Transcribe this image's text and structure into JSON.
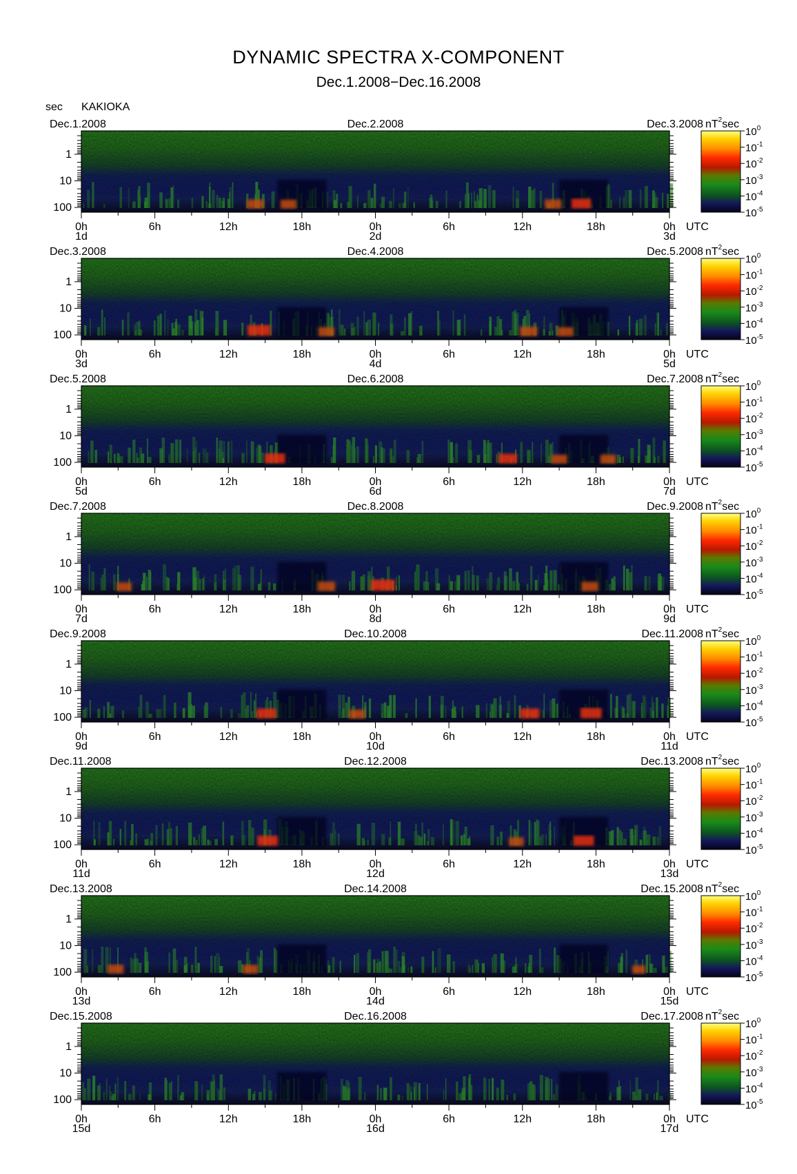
{
  "chart_data": {
    "type": "heatmap",
    "title": "DYNAMIC SPECTRA X-COMPONENT",
    "subtitle": "Dec.1.2008−Dec.16.2008",
    "y_unit": "sec",
    "station": "KAKIOKA",
    "colorbar_unit": "nT",
    "colorbar_unit_suffix": "sec",
    "colorbar_unit_exp": "2",
    "colorbar_ticks": [
      {
        "base": "10",
        "exp": "0"
      },
      {
        "base": "10",
        "exp": "-1"
      },
      {
        "base": "10",
        "exp": "-2"
      },
      {
        "base": "10",
        "exp": "-3"
      },
      {
        "base": "10",
        "exp": "-4"
      },
      {
        "base": "10",
        "exp": "-5"
      }
    ],
    "colorbar_colors": [
      "#ffff80",
      "#ffd000",
      "#ff8c00",
      "#ff2a00",
      "#b81800",
      "#5a7a00",
      "#1a8a1a",
      "#0d5a1e",
      "#14145a",
      "#050514"
    ],
    "y_tick_labels": [
      "1",
      "10",
      "100"
    ],
    "y_tick_values": [
      1,
      10,
      100
    ],
    "x_tick_labels": [
      "0h",
      "6h",
      "12h",
      "18h",
      "0h",
      "6h",
      "12h",
      "18h",
      "0h"
    ],
    "time_unit": "UTC",
    "panels": [
      {
        "date_left": "Dec.1.2008",
        "date_mid": "Dec.2.2008",
        "date_right": "Dec.3.2008",
        "day_labels": [
          "1d",
          "2d",
          "3d"
        ],
        "events": [
          [
            14.2,
            0.55
          ],
          [
            16.9,
            0.5
          ],
          [
            38.5,
            0.55
          ],
          [
            40.8,
            0.7
          ]
        ]
      },
      {
        "date_left": "Dec.3.2008",
        "date_mid": "Dec.4.2008",
        "date_right": "Dec.5.2008",
        "day_labels": [
          "3d",
          "4d",
          "5d"
        ],
        "events": [
          [
            14.5,
            0.9
          ],
          [
            20.0,
            0.5
          ],
          [
            36.5,
            0.6
          ],
          [
            39.5,
            0.5
          ]
        ]
      },
      {
        "date_left": "Dec.5.2008",
        "date_mid": "Dec.6.2008",
        "date_right": "Dec.7.2008",
        "day_labels": [
          "5d",
          "6d",
          "7d"
        ],
        "events": [
          [
            15.8,
            0.75
          ],
          [
            34.8,
            0.65
          ],
          [
            39.0,
            0.5
          ],
          [
            43.0,
            0.5
          ]
        ]
      },
      {
        "date_left": "Dec.7.2008",
        "date_mid": "Dec.8.2008",
        "date_right": "Dec.9.2008",
        "day_labels": [
          "7d",
          "8d",
          "9d"
        ],
        "events": [
          [
            3.5,
            0.45
          ],
          [
            20.0,
            0.6
          ],
          [
            24.6,
            0.95
          ],
          [
            41.5,
            0.55
          ]
        ]
      },
      {
        "date_left": "Dec.9.2008",
        "date_mid": "Dec.10.2008",
        "date_right": "Dec.11.2008",
        "day_labels": [
          "9d",
          "10d",
          "11d"
        ],
        "events": [
          [
            15.1,
            0.7
          ],
          [
            22.5,
            0.5
          ],
          [
            36.6,
            0.7
          ],
          [
            41.6,
            0.8
          ]
        ]
      },
      {
        "date_left": "Dec.11.2008",
        "date_mid": "Dec.12.2008",
        "date_right": "Dec.13.2008",
        "day_labels": [
          "11d",
          "12d",
          "13d"
        ],
        "events": [
          [
            15.2,
            0.75
          ],
          [
            35.5,
            0.45
          ],
          [
            41.0,
            0.75
          ]
        ]
      },
      {
        "date_left": "Dec.13.2008",
        "date_mid": "Dec.14.2008",
        "date_right": "Dec.15.2008",
        "day_labels": [
          "13d",
          "14d",
          "15d"
        ],
        "events": [
          [
            2.8,
            0.5
          ],
          [
            13.8,
            0.45
          ],
          [
            45.5,
            0.35
          ]
        ]
      },
      {
        "date_left": "Dec.15.2008",
        "date_mid": "Dec.16.2008",
        "date_right": "Dec.17.2008",
        "day_labels": [
          "15d",
          "16d",
          "17d"
        ],
        "events": []
      }
    ]
  }
}
